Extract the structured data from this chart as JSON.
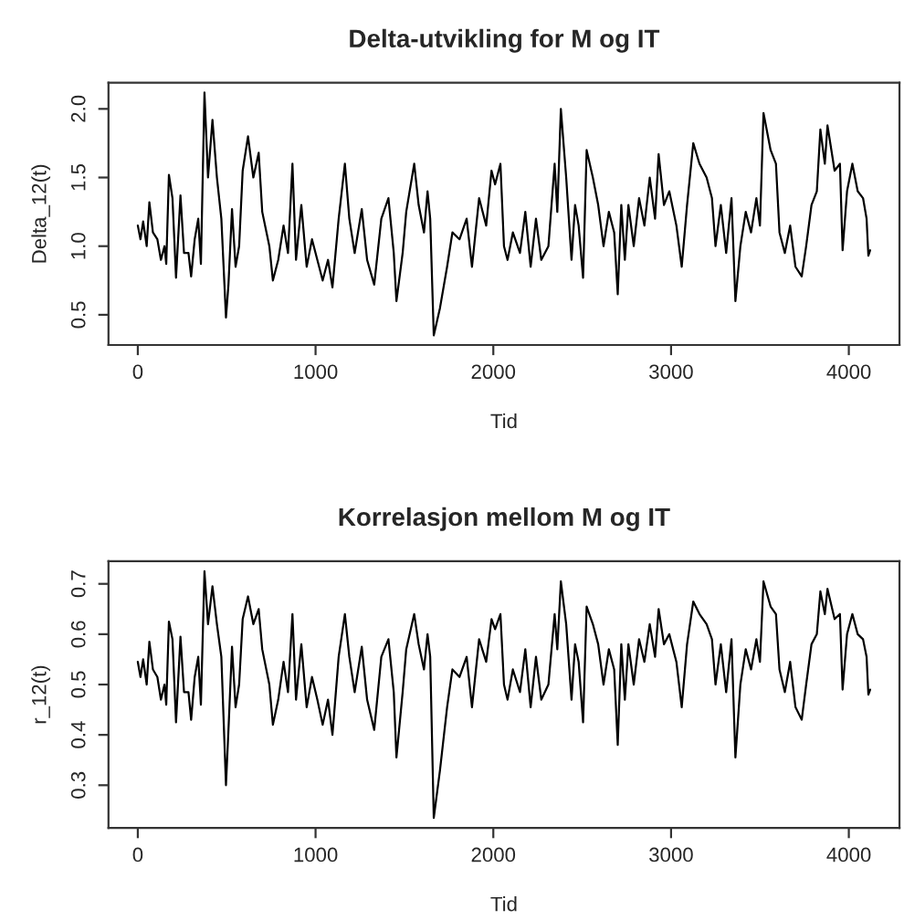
{
  "chart_data": [
    {
      "type": "line",
      "title": "Delta-utvikling for M og IT",
      "xlabel": "Tid",
      "ylabel": "Delta_12(t)",
      "xlim": [
        -165,
        4285
      ],
      "ylim": [
        0.28,
        2.19
      ],
      "xticks": [
        0,
        1000,
        2000,
        3000,
        4000
      ],
      "yticks": [
        0.5,
        {
          "value": 1,
          "label": "1.0"
        },
        1.5,
        {
          "value": 2,
          "label": "2.0"
        }
      ],
      "grid": false,
      "marker": "none",
      "line_style": "solid",
      "x": [
        0,
        15,
        30,
        50,
        65,
        85,
        110,
        130,
        150,
        160,
        175,
        195,
        215,
        240,
        260,
        285,
        300,
        320,
        340,
        355,
        375,
        395,
        420,
        445,
        470,
        496,
        510,
        530,
        550,
        570,
        590,
        620,
        650,
        680,
        700,
        740,
        760,
        790,
        820,
        845,
        870,
        890,
        920,
        950,
        980,
        1010,
        1040,
        1070,
        1095,
        1130,
        1165,
        1190,
        1220,
        1260,
        1290,
        1330,
        1370,
        1410,
        1440,
        1455,
        1490,
        1510,
        1555,
        1580,
        1610,
        1630,
        1645,
        1665,
        1700,
        1740,
        1770,
        1810,
        1850,
        1880,
        1920,
        1960,
        1990,
        2010,
        2040,
        2060,
        2080,
        2110,
        2150,
        2180,
        2210,
        2240,
        2270,
        2310,
        2345,
        2360,
        2380,
        2410,
        2440,
        2460,
        2480,
        2505,
        2525,
        2560,
        2590,
        2620,
        2650,
        2680,
        2700,
        2720,
        2740,
        2760,
        2790,
        2820,
        2850,
        2880,
        2910,
        2930,
        2960,
        2990,
        3030,
        3060,
        3090,
        3125,
        3160,
        3200,
        3230,
        3250,
        3280,
        3310,
        3340,
        3362,
        3390,
        3420,
        3450,
        3480,
        3500,
        3520,
        3560,
        3590,
        3610,
        3640,
        3670,
        3700,
        3735,
        3760,
        3790,
        3820,
        3840,
        3865,
        3880,
        3920,
        3950,
        3965,
        3990,
        4020,
        4050,
        4080,
        4100,
        4110,
        4120
      ],
      "series": [
        {
          "color": "#000000",
          "values": [
            1.15,
            1.05,
            1.18,
            1.0,
            1.32,
            1.1,
            1.05,
            0.9,
            1.0,
            0.87,
            1.52,
            1.35,
            0.77,
            1.37,
            0.95,
            0.95,
            0.78,
            1.05,
            1.2,
            0.87,
            2.12,
            1.5,
            1.92,
            1.5,
            1.2,
            0.48,
            0.72,
            1.27,
            0.85,
            1.0,
            1.55,
            1.8,
            1.5,
            1.68,
            1.25,
            1.0,
            0.75,
            0.9,
            1.15,
            0.95,
            1.6,
            0.9,
            1.3,
            0.85,
            1.05,
            0.9,
            0.75,
            0.9,
            0.7,
            1.2,
            1.6,
            1.2,
            0.95,
            1.27,
            0.9,
            0.72,
            1.2,
            1.35,
            0.95,
            0.6,
            0.95,
            1.25,
            1.6,
            1.3,
            1.1,
            1.4,
            1.2,
            0.35,
            0.55,
            0.85,
            1.1,
            1.05,
            1.2,
            0.85,
            1.35,
            1.15,
            1.55,
            1.45,
            1.6,
            1.0,
            0.9,
            1.1,
            0.95,
            1.25,
            0.85,
            1.2,
            0.9,
            1.0,
            1.6,
            1.25,
            2.0,
            1.5,
            0.9,
            1.3,
            1.15,
            0.77,
            1.7,
            1.5,
            1.3,
            1.0,
            1.25,
            1.1,
            0.65,
            1.3,
            0.9,
            1.3,
            1.0,
            1.35,
            1.15,
            1.5,
            1.2,
            1.67,
            1.3,
            1.4,
            1.15,
            0.85,
            1.3,
            1.75,
            1.6,
            1.5,
            1.35,
            1.0,
            1.3,
            0.95,
            1.35,
            0.6,
            1.0,
            1.25,
            1.1,
            1.35,
            1.15,
            1.97,
            1.7,
            1.6,
            1.1,
            0.95,
            1.15,
            0.85,
            0.78,
            1.0,
            1.3,
            1.4,
            1.85,
            1.6,
            1.88,
            1.55,
            1.6,
            0.97,
            1.4,
            1.6,
            1.4,
            1.35,
            1.2,
            0.93,
            0.97
          ]
        }
      ]
    },
    {
      "type": "line",
      "title": "Korrelasjon mellom M og IT",
      "xlabel": "Tid",
      "ylabel": "r_12(t)",
      "xlim": [
        -165,
        4285
      ],
      "ylim": [
        0.215,
        0.745
      ],
      "xticks": [
        0,
        1000,
        2000,
        3000,
        4000
      ],
      "yticks": [
        0.3,
        0.4,
        0.5,
        0.6,
        0.7
      ],
      "grid": false,
      "marker": "none",
      "line_style": "solid",
      "x": [
        0,
        15,
        30,
        50,
        65,
        85,
        110,
        130,
        150,
        160,
        175,
        195,
        215,
        240,
        260,
        285,
        300,
        320,
        340,
        355,
        375,
        395,
        420,
        445,
        470,
        496,
        510,
        530,
        550,
        570,
        590,
        620,
        650,
        680,
        700,
        740,
        760,
        790,
        820,
        845,
        870,
        890,
        920,
        950,
        980,
        1010,
        1040,
        1070,
        1095,
        1130,
        1165,
        1190,
        1220,
        1260,
        1290,
        1330,
        1370,
        1410,
        1440,
        1455,
        1490,
        1510,
        1555,
        1580,
        1610,
        1630,
        1645,
        1665,
        1700,
        1740,
        1770,
        1810,
        1850,
        1880,
        1920,
        1960,
        1990,
        2010,
        2040,
        2060,
        2080,
        2110,
        2150,
        2180,
        2210,
        2240,
        2270,
        2310,
        2345,
        2360,
        2380,
        2410,
        2440,
        2460,
        2480,
        2505,
        2525,
        2560,
        2590,
        2620,
        2650,
        2680,
        2700,
        2720,
        2740,
        2760,
        2790,
        2820,
        2850,
        2880,
        2910,
        2930,
        2960,
        2990,
        3030,
        3060,
        3090,
        3125,
        3160,
        3200,
        3230,
        3250,
        3280,
        3310,
        3340,
        3362,
        3390,
        3420,
        3450,
        3480,
        3500,
        3520,
        3560,
        3590,
        3610,
        3640,
        3670,
        3700,
        3735,
        3760,
        3790,
        3820,
        3840,
        3865,
        3880,
        3920,
        3950,
        3965,
        3990,
        4020,
        4050,
        4080,
        4100,
        4110,
        4120
      ],
      "series": [
        {
          "color": "#000000",
          "values": [
            0.545,
            0.515,
            0.55,
            0.5,
            0.585,
            0.53,
            0.515,
            0.47,
            0.5,
            0.46,
            0.625,
            0.59,
            0.425,
            0.595,
            0.485,
            0.485,
            0.43,
            0.515,
            0.555,
            0.46,
            0.725,
            0.62,
            0.695,
            0.62,
            0.555,
            0.3,
            0.41,
            0.575,
            0.455,
            0.5,
            0.63,
            0.675,
            0.62,
            0.65,
            0.57,
            0.5,
            0.42,
            0.47,
            0.545,
            0.485,
            0.64,
            0.47,
            0.58,
            0.455,
            0.515,
            0.47,
            0.42,
            0.47,
            0.4,
            0.555,
            0.64,
            0.555,
            0.485,
            0.575,
            0.47,
            0.41,
            0.555,
            0.59,
            0.485,
            0.355,
            0.485,
            0.57,
            0.64,
            0.58,
            0.53,
            0.6,
            0.555,
            0.235,
            0.33,
            0.455,
            0.53,
            0.515,
            0.555,
            0.455,
            0.59,
            0.545,
            0.63,
            0.61,
            0.64,
            0.5,
            0.47,
            0.53,
            0.485,
            0.57,
            0.455,
            0.555,
            0.47,
            0.5,
            0.64,
            0.57,
            0.705,
            0.62,
            0.47,
            0.58,
            0.545,
            0.425,
            0.655,
            0.62,
            0.58,
            0.5,
            0.57,
            0.53,
            0.38,
            0.58,
            0.47,
            0.58,
            0.5,
            0.59,
            0.545,
            0.62,
            0.555,
            0.65,
            0.58,
            0.6,
            0.545,
            0.455,
            0.58,
            0.665,
            0.64,
            0.62,
            0.59,
            0.5,
            0.58,
            0.485,
            0.59,
            0.355,
            0.5,
            0.57,
            0.53,
            0.59,
            0.545,
            0.705,
            0.655,
            0.64,
            0.53,
            0.485,
            0.545,
            0.455,
            0.43,
            0.5,
            0.58,
            0.6,
            0.685,
            0.64,
            0.69,
            0.63,
            0.64,
            0.49,
            0.6,
            0.64,
            0.6,
            0.59,
            0.555,
            0.48,
            0.49
          ]
        }
      ]
    }
  ]
}
